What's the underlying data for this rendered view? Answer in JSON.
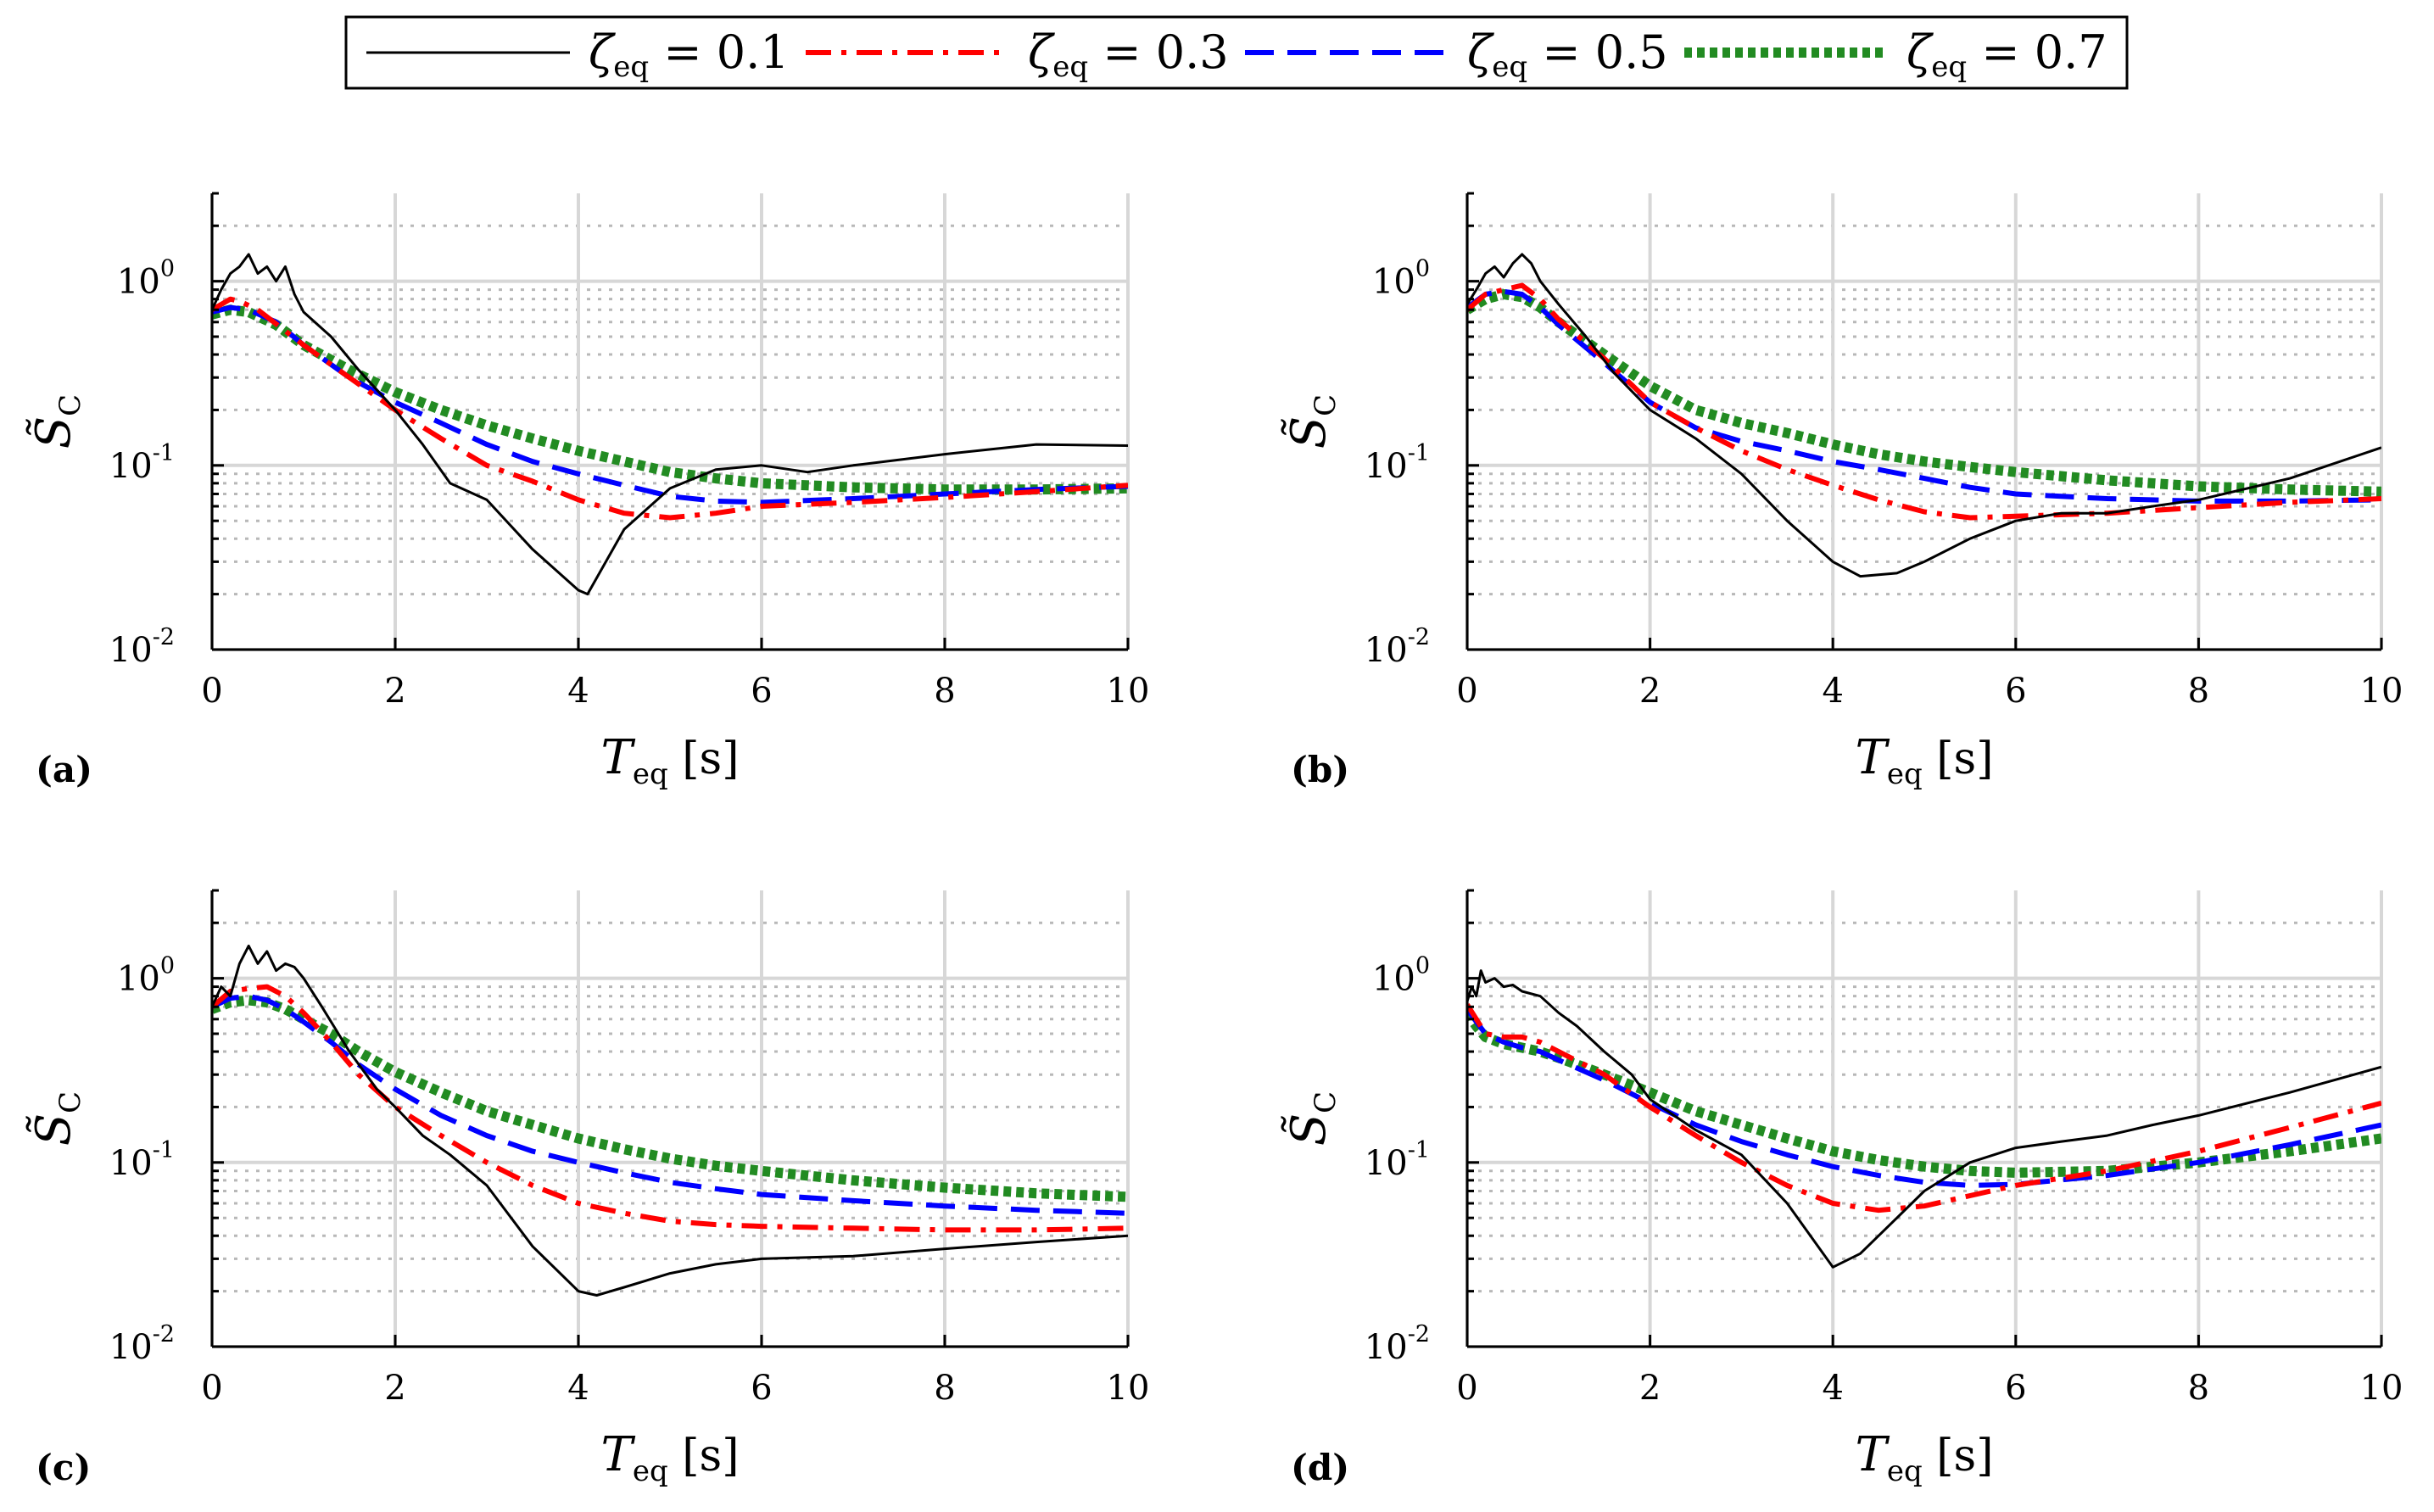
{
  "legend": [
    {
      "symbol": "ζ",
      "sub": "eq",
      "eq": "= 0.1",
      "series": "zeta_0.1"
    },
    {
      "symbol": "ζ",
      "sub": "eq",
      "eq": "= 0.3",
      "series": "zeta_0.3"
    },
    {
      "symbol": "ζ",
      "sub": "eq",
      "eq": "= 0.5",
      "series": "zeta_0.5"
    },
    {
      "symbol": "ζ",
      "sub": "eq",
      "eq": "= 0.7",
      "series": "zeta_0.7"
    }
  ],
  "series_styles": [
    {
      "key": "zeta_0.1",
      "color": "#000000",
      "dash": "solid"
    },
    {
      "key": "zeta_0.3",
      "color": "#ff0000",
      "dash": "dashdot"
    },
    {
      "key": "zeta_0.5",
      "color": "#0000ff",
      "dash": "dashed"
    },
    {
      "key": "zeta_0.7",
      "color": "#228b22",
      "dash": "dotted"
    }
  ],
  "chart_data": [
    {
      "type": "line",
      "panel_label": "(a)",
      "xlabel": {
        "main": "T",
        "sub": "eq",
        "unit": "[s]"
      },
      "ylabel": {
        "main": "S̃",
        "sub": "C"
      },
      "xlim": [
        0,
        10
      ],
      "ylim": [
        0.01,
        3
      ],
      "yscale": "log",
      "grid": true,
      "xticks": [
        "0",
        "2",
        "4",
        "6",
        "8",
        "10"
      ],
      "yticks": [
        {
          "base": "10",
          "exp": "-2"
        },
        {
          "base": "10",
          "exp": "-1"
        },
        {
          "base": "10",
          "exp": "0"
        }
      ],
      "series": [
        {
          "name": "zeta_0.1",
          "x": [
            0,
            0.1,
            0.2,
            0.3,
            0.4,
            0.5,
            0.6,
            0.7,
            0.8,
            0.9,
            1,
            1.3,
            1.6,
            2,
            2.3,
            2.6,
            3,
            3.5,
            4,
            4.1,
            4.5,
            5,
            5.5,
            6,
            6.5,
            7,
            8,
            9,
            10
          ],
          "y": [
            0.7,
            0.9,
            1.1,
            1.2,
            1.4,
            1.1,
            1.2,
            1.0,
            1.2,
            0.85,
            0.68,
            0.5,
            0.33,
            0.2,
            0.13,
            0.08,
            0.065,
            0.035,
            0.021,
            0.02,
            0.045,
            0.075,
            0.095,
            0.1,
            0.092,
            0.1,
            0.115,
            0.13,
            0.128
          ]
        },
        {
          "name": "zeta_0.3",
          "x": [
            0,
            0.2,
            0.3,
            0.5,
            1,
            1.5,
            2,
            2.5,
            3,
            3.5,
            4,
            4.5,
            5,
            5.5,
            6,
            7,
            8,
            9,
            10
          ],
          "y": [
            0.7,
            0.8,
            0.78,
            0.7,
            0.45,
            0.3,
            0.2,
            0.14,
            0.1,
            0.082,
            0.065,
            0.055,
            0.052,
            0.055,
            0.06,
            0.063,
            0.067,
            0.072,
            0.078
          ]
        },
        {
          "name": "zeta_0.5",
          "x": [
            0,
            0.2,
            0.4,
            0.7,
            1,
            1.5,
            2,
            2.5,
            3,
            3.5,
            4,
            4.5,
            5,
            5.5,
            6,
            7,
            8,
            9,
            10
          ],
          "y": [
            0.68,
            0.72,
            0.7,
            0.6,
            0.45,
            0.3,
            0.22,
            0.17,
            0.13,
            0.105,
            0.09,
            0.078,
            0.068,
            0.064,
            0.063,
            0.066,
            0.07,
            0.074,
            0.077
          ]
        },
        {
          "name": "zeta_0.7",
          "x": [
            0,
            0.2,
            0.4,
            0.7,
            1,
            1.5,
            2,
            2.5,
            3,
            3.5,
            4,
            4.5,
            5,
            5.5,
            6,
            7,
            8,
            9,
            10
          ],
          "y": [
            0.66,
            0.7,
            0.68,
            0.58,
            0.45,
            0.33,
            0.25,
            0.2,
            0.165,
            0.14,
            0.12,
            0.105,
            0.092,
            0.085,
            0.08,
            0.076,
            0.074,
            0.074,
            0.075
          ]
        }
      ]
    },
    {
      "type": "line",
      "panel_label": "(b)",
      "xlabel": {
        "main": "T",
        "sub": "eq",
        "unit": "[s]"
      },
      "ylabel": {
        "main": "S̃",
        "sub": "C"
      },
      "xlim": [
        0,
        10
      ],
      "ylim": [
        0.01,
        3
      ],
      "yscale": "log",
      "grid": true,
      "xticks": [
        "0",
        "2",
        "4",
        "6",
        "8",
        "10"
      ],
      "yticks": [
        {
          "base": "10",
          "exp": "-2"
        },
        {
          "base": "10",
          "exp": "-1"
        },
        {
          "base": "10",
          "exp": "0"
        }
      ],
      "series": [
        {
          "name": "zeta_0.1",
          "x": [
            0,
            0.1,
            0.2,
            0.3,
            0.4,
            0.5,
            0.6,
            0.7,
            0.8,
            1,
            1.3,
            1.6,
            2,
            2.5,
            3,
            3.5,
            4,
            4.3,
            4.7,
            5,
            5.5,
            6,
            6.5,
            7,
            7.5,
            8,
            9,
            10
          ],
          "y": [
            0.75,
            0.9,
            1.1,
            1.2,
            1.05,
            1.25,
            1.4,
            1.25,
            1.0,
            0.75,
            0.5,
            0.32,
            0.2,
            0.14,
            0.09,
            0.05,
            0.03,
            0.025,
            0.026,
            0.03,
            0.04,
            0.05,
            0.055,
            0.055,
            0.06,
            0.065,
            0.085,
            0.125
          ]
        },
        {
          "name": "zeta_0.3",
          "x": [
            0,
            0.2,
            0.4,
            0.6,
            0.8,
            1,
            1.5,
            2,
            2.5,
            3,
            3.5,
            4,
            4.5,
            5,
            5.5,
            6,
            7,
            8,
            9,
            10
          ],
          "y": [
            0.7,
            0.85,
            0.9,
            0.95,
            0.8,
            0.62,
            0.38,
            0.22,
            0.16,
            0.12,
            0.095,
            0.078,
            0.065,
            0.056,
            0.052,
            0.053,
            0.055,
            0.059,
            0.063,
            0.066
          ]
        },
        {
          "name": "zeta_0.5",
          "x": [
            0,
            0.2,
            0.4,
            0.6,
            0.8,
            1,
            1.5,
            2,
            2.5,
            3,
            3.5,
            4,
            4.5,
            5,
            5.5,
            6,
            7,
            8,
            9,
            10
          ],
          "y": [
            0.72,
            0.85,
            0.88,
            0.85,
            0.72,
            0.58,
            0.36,
            0.22,
            0.16,
            0.135,
            0.12,
            0.105,
            0.095,
            0.085,
            0.076,
            0.07,
            0.066,
            0.064,
            0.064,
            0.065
          ]
        },
        {
          "name": "zeta_0.7",
          "x": [
            0,
            0.2,
            0.4,
            0.6,
            0.8,
            1,
            1.5,
            2,
            2.5,
            3,
            3.5,
            4,
            4.5,
            5,
            5.5,
            6,
            7,
            8,
            9,
            10
          ],
          "y": [
            0.7,
            0.8,
            0.85,
            0.82,
            0.72,
            0.6,
            0.4,
            0.27,
            0.2,
            0.17,
            0.15,
            0.13,
            0.115,
            0.105,
            0.098,
            0.092,
            0.083,
            0.077,
            0.074,
            0.072
          ]
        }
      ]
    },
    {
      "type": "line",
      "panel_label": "(c)",
      "xlabel": {
        "main": "T",
        "sub": "eq",
        "unit": "[s]"
      },
      "ylabel": {
        "main": "S̃",
        "sub": "C"
      },
      "xlim": [
        0,
        10
      ],
      "ylim": [
        0.01,
        3
      ],
      "yscale": "log",
      "grid": true,
      "xticks": [
        "0",
        "2",
        "4",
        "6",
        "8",
        "10"
      ],
      "yticks": [
        {
          "base": "10",
          "exp": "-2"
        },
        {
          "base": "10",
          "exp": "-1"
        },
        {
          "base": "10",
          "exp": "0"
        }
      ],
      "series": [
        {
          "name": "zeta_0.1",
          "x": [
            0,
            0.1,
            0.2,
            0.3,
            0.4,
            0.5,
            0.6,
            0.7,
            0.8,
            0.9,
            1,
            1.2,
            1.5,
            1.8,
            2,
            2.3,
            2.6,
            3,
            3.5,
            4,
            4.2,
            4.5,
            5,
            5.5,
            6,
            7,
            8,
            9,
            10
          ],
          "y": [
            0.7,
            0.9,
            0.8,
            1.2,
            1.5,
            1.2,
            1.4,
            1.1,
            1.2,
            1.15,
            1.0,
            0.7,
            0.4,
            0.25,
            0.2,
            0.14,
            0.11,
            0.075,
            0.035,
            0.02,
            0.019,
            0.021,
            0.025,
            0.028,
            0.03,
            0.031,
            0.034,
            0.037,
            0.04
          ]
        },
        {
          "name": "zeta_0.3",
          "x": [
            0,
            0.2,
            0.4,
            0.6,
            0.8,
            1,
            1.3,
            1.6,
            2,
            2.5,
            3,
            3.5,
            4,
            4.5,
            5,
            5.5,
            6,
            7,
            8,
            9,
            10
          ],
          "y": [
            0.7,
            0.85,
            0.88,
            0.9,
            0.8,
            0.65,
            0.45,
            0.3,
            0.2,
            0.14,
            0.1,
            0.075,
            0.06,
            0.053,
            0.048,
            0.046,
            0.045,
            0.044,
            0.043,
            0.043,
            0.044
          ]
        },
        {
          "name": "zeta_0.5",
          "x": [
            0,
            0.2,
            0.4,
            0.6,
            0.8,
            1,
            1.3,
            1.6,
            2,
            2.5,
            3,
            3.5,
            4,
            4.5,
            5,
            5.5,
            6,
            7,
            8,
            9,
            10
          ],
          "y": [
            0.7,
            0.78,
            0.8,
            0.76,
            0.68,
            0.58,
            0.45,
            0.34,
            0.25,
            0.18,
            0.14,
            0.115,
            0.1,
            0.088,
            0.078,
            0.072,
            0.067,
            0.062,
            0.058,
            0.055,
            0.053
          ]
        },
        {
          "name": "zeta_0.7",
          "x": [
            0,
            0.2,
            0.4,
            0.6,
            0.8,
            1,
            1.3,
            1.6,
            2,
            2.5,
            3,
            3.5,
            4,
            4.5,
            5,
            5.5,
            6,
            7,
            8,
            9,
            10
          ],
          "y": [
            0.68,
            0.74,
            0.76,
            0.74,
            0.68,
            0.6,
            0.5,
            0.4,
            0.31,
            0.24,
            0.19,
            0.16,
            0.135,
            0.118,
            0.105,
            0.096,
            0.09,
            0.08,
            0.073,
            0.068,
            0.065
          ]
        }
      ]
    },
    {
      "type": "line",
      "panel_label": "(d)",
      "xlabel": {
        "main": "T",
        "sub": "eq",
        "unit": "[s]"
      },
      "ylabel": {
        "main": "S̃",
        "sub": "C"
      },
      "xlim": [
        0,
        10
      ],
      "ylim": [
        0.01,
        3
      ],
      "yscale": "log",
      "grid": true,
      "xticks": [
        "0",
        "2",
        "4",
        "6",
        "8",
        "10"
      ],
      "yticks": [
        {
          "base": "10",
          "exp": "-2"
        },
        {
          "base": "10",
          "exp": "-1"
        },
        {
          "base": "10",
          "exp": "0"
        }
      ],
      "series": [
        {
          "name": "zeta_0.1",
          "x": [
            0,
            0.05,
            0.1,
            0.15,
            0.2,
            0.3,
            0.4,
            0.5,
            0.6,
            0.8,
            1,
            1.2,
            1.5,
            1.8,
            2,
            2.5,
            3,
            3.5,
            4,
            4.3,
            4.7,
            5,
            5.5,
            6,
            6.5,
            7,
            7.5,
            8,
            9,
            10
          ],
          "y": [
            0.75,
            0.9,
            0.8,
            1.1,
            0.95,
            1.0,
            0.9,
            0.92,
            0.85,
            0.8,
            0.65,
            0.55,
            0.4,
            0.3,
            0.22,
            0.15,
            0.11,
            0.06,
            0.027,
            0.032,
            0.05,
            0.07,
            0.1,
            0.12,
            0.13,
            0.14,
            0.16,
            0.18,
            0.24,
            0.33
          ]
        },
        {
          "name": "zeta_0.3",
          "x": [
            0,
            0.1,
            0.2,
            0.4,
            0.6,
            0.8,
            1,
            1.5,
            2,
            2.5,
            3,
            3.5,
            4,
            4.5,
            5,
            5.5,
            6,
            7,
            8,
            9,
            10
          ],
          "y": [
            0.72,
            0.6,
            0.5,
            0.48,
            0.48,
            0.45,
            0.4,
            0.3,
            0.2,
            0.14,
            0.1,
            0.075,
            0.06,
            0.055,
            0.058,
            0.066,
            0.075,
            0.09,
            0.115,
            0.155,
            0.21
          ]
        },
        {
          "name": "zeta_0.5",
          "x": [
            0,
            0.1,
            0.2,
            0.4,
            0.6,
            0.8,
            1,
            1.5,
            2,
            2.5,
            3,
            3.5,
            4,
            4.5,
            5,
            5.5,
            6,
            7,
            8,
            9,
            10
          ],
          "y": [
            0.68,
            0.58,
            0.5,
            0.45,
            0.42,
            0.4,
            0.36,
            0.28,
            0.21,
            0.16,
            0.13,
            0.11,
            0.095,
            0.085,
            0.078,
            0.075,
            0.076,
            0.085,
            0.1,
            0.125,
            0.16
          ]
        },
        {
          "name": "zeta_0.7",
          "x": [
            0,
            0.1,
            0.2,
            0.4,
            0.6,
            0.8,
            1,
            1.5,
            2,
            2.5,
            3,
            3.5,
            4,
            4.5,
            5,
            5.5,
            6,
            7,
            8,
            9,
            10
          ],
          "y": [
            0.65,
            0.55,
            0.48,
            0.44,
            0.42,
            0.4,
            0.37,
            0.3,
            0.24,
            0.19,
            0.16,
            0.135,
            0.115,
            0.103,
            0.095,
            0.09,
            0.088,
            0.09,
            0.1,
            0.115,
            0.135
          ]
        }
      ]
    }
  ]
}
